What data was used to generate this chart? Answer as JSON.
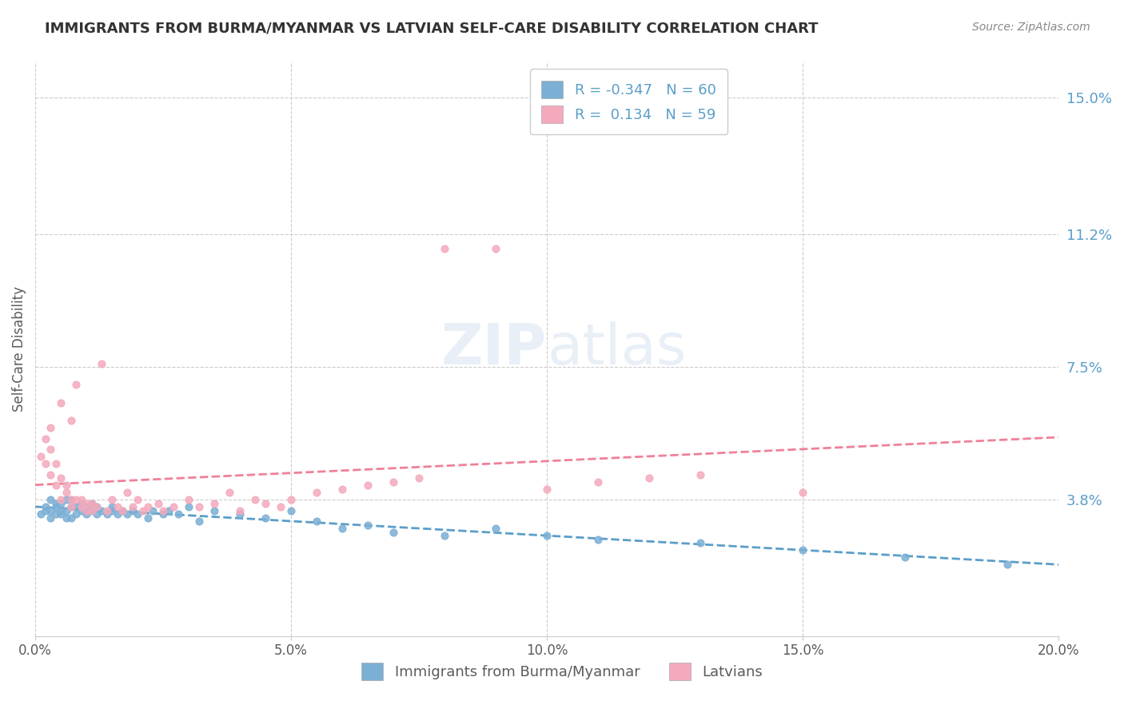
{
  "title": "IMMIGRANTS FROM BURMA/MYANMAR VS LATVIAN SELF-CARE DISABILITY CORRELATION CHART",
  "source": "Source: ZipAtlas.com",
  "ylabel": "Self-Care Disability",
  "xlim": [
    0.0,
    0.2
  ],
  "ylim": [
    0.0,
    0.16
  ],
  "yticks": [
    0.038,
    0.075,
    0.112,
    0.15
  ],
  "ytick_labels": [
    "3.8%",
    "7.5%",
    "11.2%",
    "15.0%"
  ],
  "xticks": [
    0.0,
    0.05,
    0.1,
    0.15,
    0.2
  ],
  "xtick_labels": [
    "0.0%",
    "5.0%",
    "10.0%",
    "15.0%",
    "20.0%"
  ],
  "blue_R": -0.347,
  "blue_N": 60,
  "pink_R": 0.134,
  "pink_N": 59,
  "blue_color": "#7BAFD4",
  "pink_color": "#F4A9BC",
  "blue_line_color": "#5B9EC9",
  "pink_line_color": "#F08099",
  "legend_label_blue": "Immigrants from Burma/Myanmar",
  "legend_label_pink": "Latvians",
  "blue_scatter_x": [
    0.001,
    0.002,
    0.002,
    0.003,
    0.003,
    0.003,
    0.004,
    0.004,
    0.004,
    0.005,
    0.005,
    0.005,
    0.006,
    0.006,
    0.006,
    0.007,
    0.007,
    0.007,
    0.008,
    0.008,
    0.009,
    0.009,
    0.01,
    0.01,
    0.011,
    0.011,
    0.012,
    0.012,
    0.013,
    0.014,
    0.015,
    0.015,
    0.016,
    0.017,
    0.018,
    0.019,
    0.02,
    0.022,
    0.023,
    0.025,
    0.026,
    0.028,
    0.03,
    0.032,
    0.035,
    0.04,
    0.045,
    0.05,
    0.055,
    0.06,
    0.065,
    0.07,
    0.08,
    0.09,
    0.1,
    0.11,
    0.13,
    0.15,
    0.17,
    0.19
  ],
  "blue_scatter_y": [
    0.034,
    0.035,
    0.036,
    0.033,
    0.035,
    0.038,
    0.034,
    0.036,
    0.037,
    0.034,
    0.035,
    0.037,
    0.033,
    0.035,
    0.038,
    0.033,
    0.036,
    0.038,
    0.034,
    0.036,
    0.035,
    0.037,
    0.034,
    0.036,
    0.035,
    0.037,
    0.034,
    0.036,
    0.035,
    0.034,
    0.035,
    0.036,
    0.034,
    0.035,
    0.034,
    0.035,
    0.034,
    0.033,
    0.035,
    0.034,
    0.035,
    0.034,
    0.036,
    0.032,
    0.035,
    0.034,
    0.033,
    0.035,
    0.032,
    0.03,
    0.031,
    0.029,
    0.028,
    0.03,
    0.028,
    0.027,
    0.026,
    0.024,
    0.022,
    0.02
  ],
  "pink_scatter_x": [
    0.001,
    0.002,
    0.002,
    0.003,
    0.003,
    0.003,
    0.004,
    0.004,
    0.005,
    0.005,
    0.005,
    0.006,
    0.006,
    0.007,
    0.007,
    0.007,
    0.008,
    0.008,
    0.009,
    0.009,
    0.01,
    0.01,
    0.011,
    0.011,
    0.012,
    0.013,
    0.014,
    0.015,
    0.016,
    0.017,
    0.018,
    0.019,
    0.02,
    0.021,
    0.022,
    0.024,
    0.025,
    0.027,
    0.03,
    0.032,
    0.035,
    0.038,
    0.04,
    0.043,
    0.045,
    0.048,
    0.05,
    0.055,
    0.06,
    0.065,
    0.07,
    0.075,
    0.08,
    0.09,
    0.1,
    0.11,
    0.12,
    0.13,
    0.15
  ],
  "pink_scatter_y": [
    0.05,
    0.055,
    0.048,
    0.045,
    0.052,
    0.058,
    0.042,
    0.048,
    0.038,
    0.044,
    0.065,
    0.04,
    0.042,
    0.036,
    0.038,
    0.06,
    0.038,
    0.07,
    0.036,
    0.038,
    0.035,
    0.037,
    0.035,
    0.037,
    0.036,
    0.076,
    0.035,
    0.038,
    0.036,
    0.035,
    0.04,
    0.036,
    0.038,
    0.035,
    0.036,
    0.037,
    0.035,
    0.036,
    0.038,
    0.036,
    0.037,
    0.04,
    0.035,
    0.038,
    0.037,
    0.036,
    0.038,
    0.04,
    0.041,
    0.042,
    0.043,
    0.044,
    0.108,
    0.108,
    0.041,
    0.043,
    0.044,
    0.045,
    0.04
  ],
  "background_color": "#FFFFFF",
  "grid_color": "#CCCCCC",
  "watermark_color": "#E8EFF7",
  "tick_color": "#5B9EC9",
  "title_color": "#333333",
  "source_color": "#888888",
  "label_color": "#5B5B5B"
}
